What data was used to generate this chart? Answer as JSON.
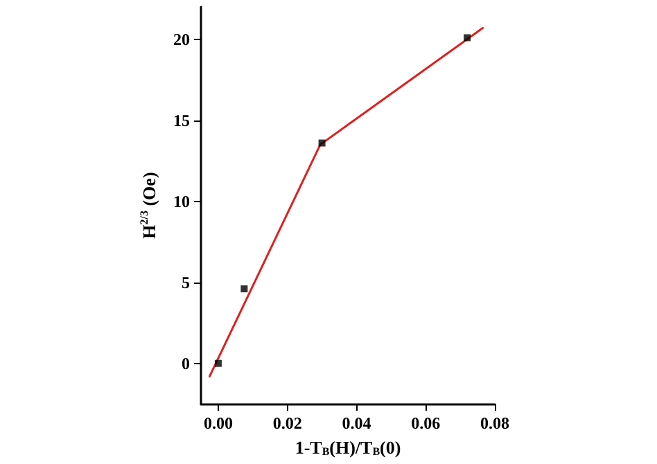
{
  "chart_data": {
    "type": "scatter",
    "xlabel": "1-T$_{B}$(H)/T$_{B}$(0)",
    "ylabel": "H$^{2/3}$ (Oe)",
    "series": [
      {
        "color": "#000000",
        "x": [
          0,
          0.0075,
          0.03,
          0.072
        ],
        "values": [
          0,
          4.6,
          13.6,
          20.1
        ],
        "marker": "square"
      },
      {
        "type": "line",
        "color": "#e02020",
        "x": [
          -0.0025,
          0.0295,
          0.0765
        ],
        "values": [
          -0.8,
          13.5,
          20.7
        ],
        "marker": "none",
        "line_style": "solid"
      }
    ],
    "xlim": [
      -0.005,
      0.08
    ],
    "xticks": [
      {
        "value": 0,
        "label": "0.00"
      },
      {
        "value": 0.02,
        "label": "0.02"
      },
      {
        "value": 0.04,
        "label": "0.04"
      },
      {
        "value": 0.06,
        "label": "0.06"
      },
      {
        "value": 0.08,
        "label": "0.08"
      }
    ],
    "ylim": [
      -2.5,
      22
    ],
    "yticks": [
      0,
      5,
      10,
      15,
      20
    ],
    "grid": false
  }
}
